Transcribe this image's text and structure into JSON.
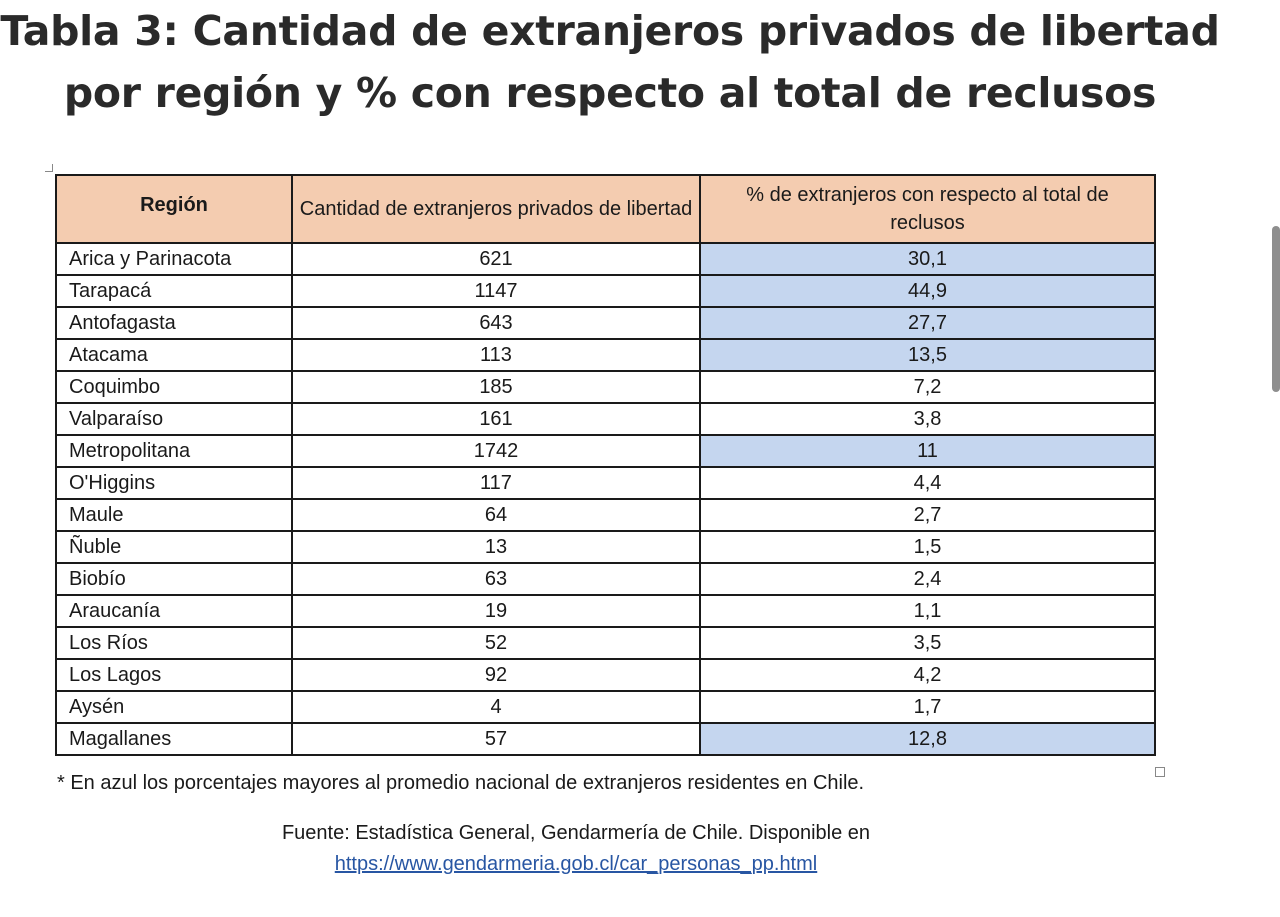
{
  "title": {
    "line1": "Tabla 3: Cantidad de extranjeros privados de libertad",
    "line2": "por región y % con respecto al total de reclusos"
  },
  "table": {
    "headers": [
      "Región",
      "Cantidad de extranjeros privados de libertad",
      "% de extranjeros con respecto al total de reclusos"
    ],
    "highlight_color": "#c5d6ef",
    "header_color": "#f4ccb0",
    "rows": [
      {
        "region": "Arica y Parinacota",
        "cantidad": "621",
        "porcentaje": "30,1",
        "highlighted": true
      },
      {
        "region": "Tarapacá",
        "cantidad": "1147",
        "porcentaje": "44,9",
        "highlighted": true
      },
      {
        "region": "Antofagasta",
        "cantidad": "643",
        "porcentaje": "27,7",
        "highlighted": true
      },
      {
        "region": "Atacama",
        "cantidad": "113",
        "porcentaje": "13,5",
        "highlighted": true
      },
      {
        "region": "Coquimbo",
        "cantidad": "185",
        "porcentaje": "7,2",
        "highlighted": false
      },
      {
        "region": "Valparaíso",
        "cantidad": "161",
        "porcentaje": "3,8",
        "highlighted": false
      },
      {
        "region": "Metropolitana",
        "cantidad": "1742",
        "porcentaje": "11",
        "highlighted": true
      },
      {
        "region": "O'Higgins",
        "cantidad": "117",
        "porcentaje": "4,4",
        "highlighted": false
      },
      {
        "region": "Maule",
        "cantidad": "64",
        "porcentaje": "2,7",
        "highlighted": false
      },
      {
        "region": "Ñuble",
        "cantidad": "13",
        "porcentaje": "1,5",
        "highlighted": false
      },
      {
        "region": "Biobío",
        "cantidad": "63",
        "porcentaje": "2,4",
        "highlighted": false
      },
      {
        "region": "Araucanía",
        "cantidad": "19",
        "porcentaje": "1,1",
        "highlighted": false
      },
      {
        "region": "Los Ríos",
        "cantidad": "52",
        "porcentaje": "3,5",
        "highlighted": false
      },
      {
        "region": "Los Lagos",
        "cantidad": "92",
        "porcentaje": "4,2",
        "highlighted": false
      },
      {
        "region": "Aysén",
        "cantidad": "4",
        "porcentaje": "1,7",
        "highlighted": false
      },
      {
        "region": "Magallanes",
        "cantidad": "57",
        "porcentaje": "12,8",
        "highlighted": true
      }
    ]
  },
  "note": "* En azul los porcentajes mayores al promedio nacional de extranjeros residentes en Chile.",
  "source": {
    "text": "Fuente: Estadística General, Gendarmería de Chile. Disponible en",
    "link": "https://www.gendarmeria.gob.cl/car_personas_pp.html"
  }
}
